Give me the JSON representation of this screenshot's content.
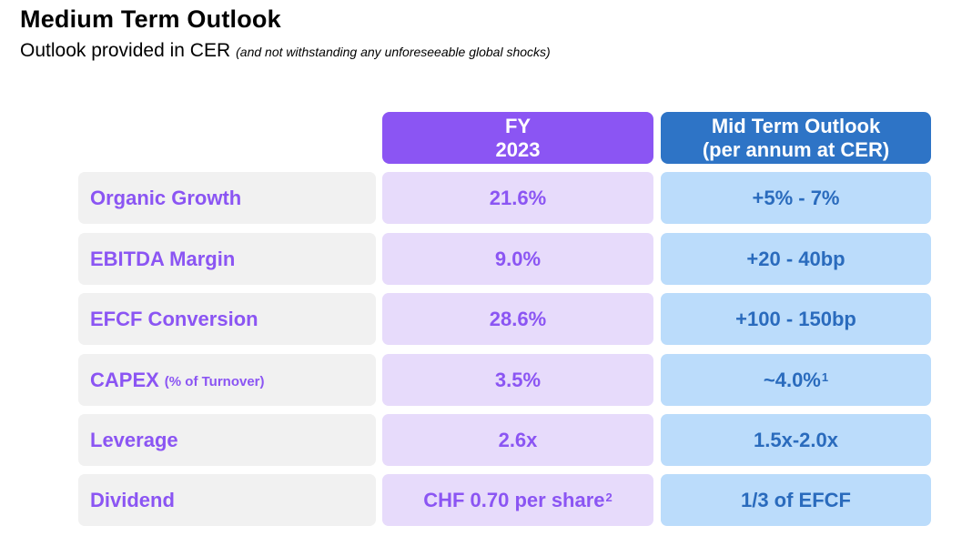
{
  "header": {
    "title": "Medium Term Outlook",
    "subtitle": "Outlook provided in CER",
    "subtitle_note": "(and not withstanding any unforeseeable global shocks)"
  },
  "columns": {
    "fy_line1": "FY",
    "fy_line2": "2023",
    "mid_line1": "Mid Term Outlook",
    "mid_line2": "(per annum at CER)"
  },
  "rows": [
    {
      "label": "Organic Growth",
      "label_note": "",
      "fy": "21.6%",
      "fy_sup": "",
      "mid": "+5% - 7%",
      "mid_sup": ""
    },
    {
      "label": "EBITDA Margin",
      "label_note": "",
      "fy": "9.0%",
      "fy_sup": "",
      "mid": "+20 - 40bp",
      "mid_sup": ""
    },
    {
      "label": "EFCF Conversion",
      "label_note": "",
      "fy": "28.6%",
      "fy_sup": "",
      "mid": "+100 - 150bp",
      "mid_sup": ""
    },
    {
      "label": "CAPEX",
      "label_note": "(% of Turnover)",
      "fy": "3.5%",
      "fy_sup": "",
      "mid": "~4.0%",
      "mid_sup": "1"
    },
    {
      "label": "Leverage",
      "label_note": "",
      "fy": "2.6x",
      "fy_sup": "",
      "mid": "1.5x-2.0x",
      "mid_sup": ""
    },
    {
      "label": "Dividend",
      "label_note": "",
      "fy": "CHF 0.70 per share",
      "fy_sup": "2",
      "mid": "1/3 of EFCF",
      "mid_sup": ""
    }
  ],
  "colors": {
    "purple_accent": "#8b55f3",
    "blue_accent": "#2e74c6",
    "purple_light": "#e7dbfb",
    "blue_light": "#bbdcfb",
    "grey_light": "#f1f1f1"
  }
}
